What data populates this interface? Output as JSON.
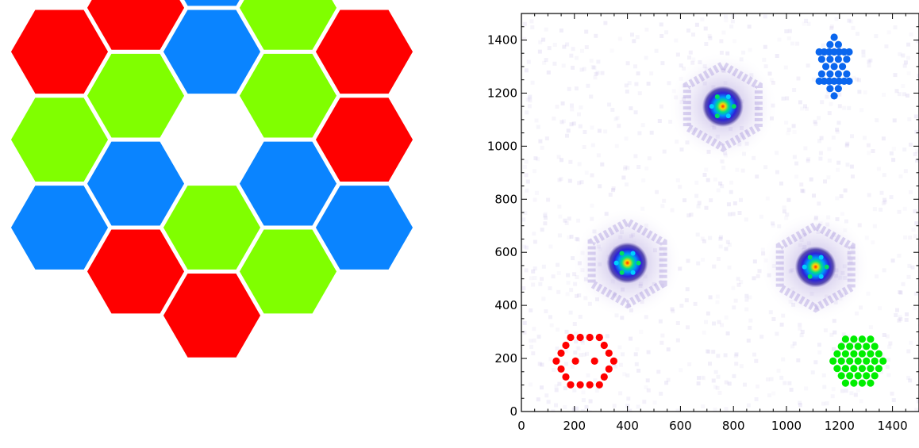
{
  "colors": {
    "red": "#ff0000",
    "green": "#80ff00",
    "blue": "#0a84ff",
    "pupil_red": "#ff0000",
    "pupil_green": "#00ee00",
    "pupil_blue": "#0a66ee"
  },
  "segments": [
    {
      "q": 0,
      "r": -3,
      "color": "blue"
    },
    {
      "q": -1,
      "r": -2,
      "color": "red"
    },
    {
      "q": 1,
      "r": -3,
      "color": "green"
    },
    {
      "q": -2,
      "r": -1,
      "color": "red"
    },
    {
      "q": 0,
      "r": -2,
      "color": "blue"
    },
    {
      "q": 2,
      "r": -3,
      "color": "red"
    },
    {
      "q": -1,
      "r": -1,
      "color": "green"
    },
    {
      "q": 1,
      "r": -2,
      "color": "green"
    },
    {
      "q": -2,
      "r": 0,
      "color": "green"
    },
    {
      "q": 2,
      "r": -2,
      "color": "red"
    },
    {
      "q": -1,
      "r": 0,
      "color": "blue"
    },
    {
      "q": 1,
      "r": -1,
      "color": "blue"
    },
    {
      "q": -2,
      "r": 1,
      "color": "blue"
    },
    {
      "q": 0,
      "r": 0,
      "color": "green"
    },
    {
      "q": 2,
      "r": -1,
      "color": "blue"
    },
    {
      "q": -1,
      "r": 1,
      "color": "red"
    },
    {
      "q": 1,
      "r": 0,
      "color": "green"
    },
    {
      "q": 0,
      "r": 1,
      "color": "red"
    }
  ],
  "chart_data": {
    "type": "heatmap",
    "xlim": [
      0,
      1500
    ],
    "ylim": [
      0,
      1500
    ],
    "x_ticks": [
      0,
      200,
      400,
      600,
      800,
      1000,
      1200,
      1400
    ],
    "y_ticks": [
      0,
      200,
      400,
      600,
      800,
      1000,
      1200,
      1400
    ],
    "psf_peaks": [
      {
        "x": 760,
        "y": 1150,
        "group": "blue"
      },
      {
        "x": 400,
        "y": 560,
        "group": "red"
      },
      {
        "x": 1110,
        "y": 545,
        "group": "green"
      }
    ],
    "pupil_insets": [
      {
        "group": "red",
        "center_x": 240,
        "center_y": 190
      },
      {
        "group": "blue",
        "center_x": 1180,
        "center_y": 1300
      },
      {
        "group": "green",
        "center_x": 1270,
        "center_y": 190
      }
    ]
  }
}
